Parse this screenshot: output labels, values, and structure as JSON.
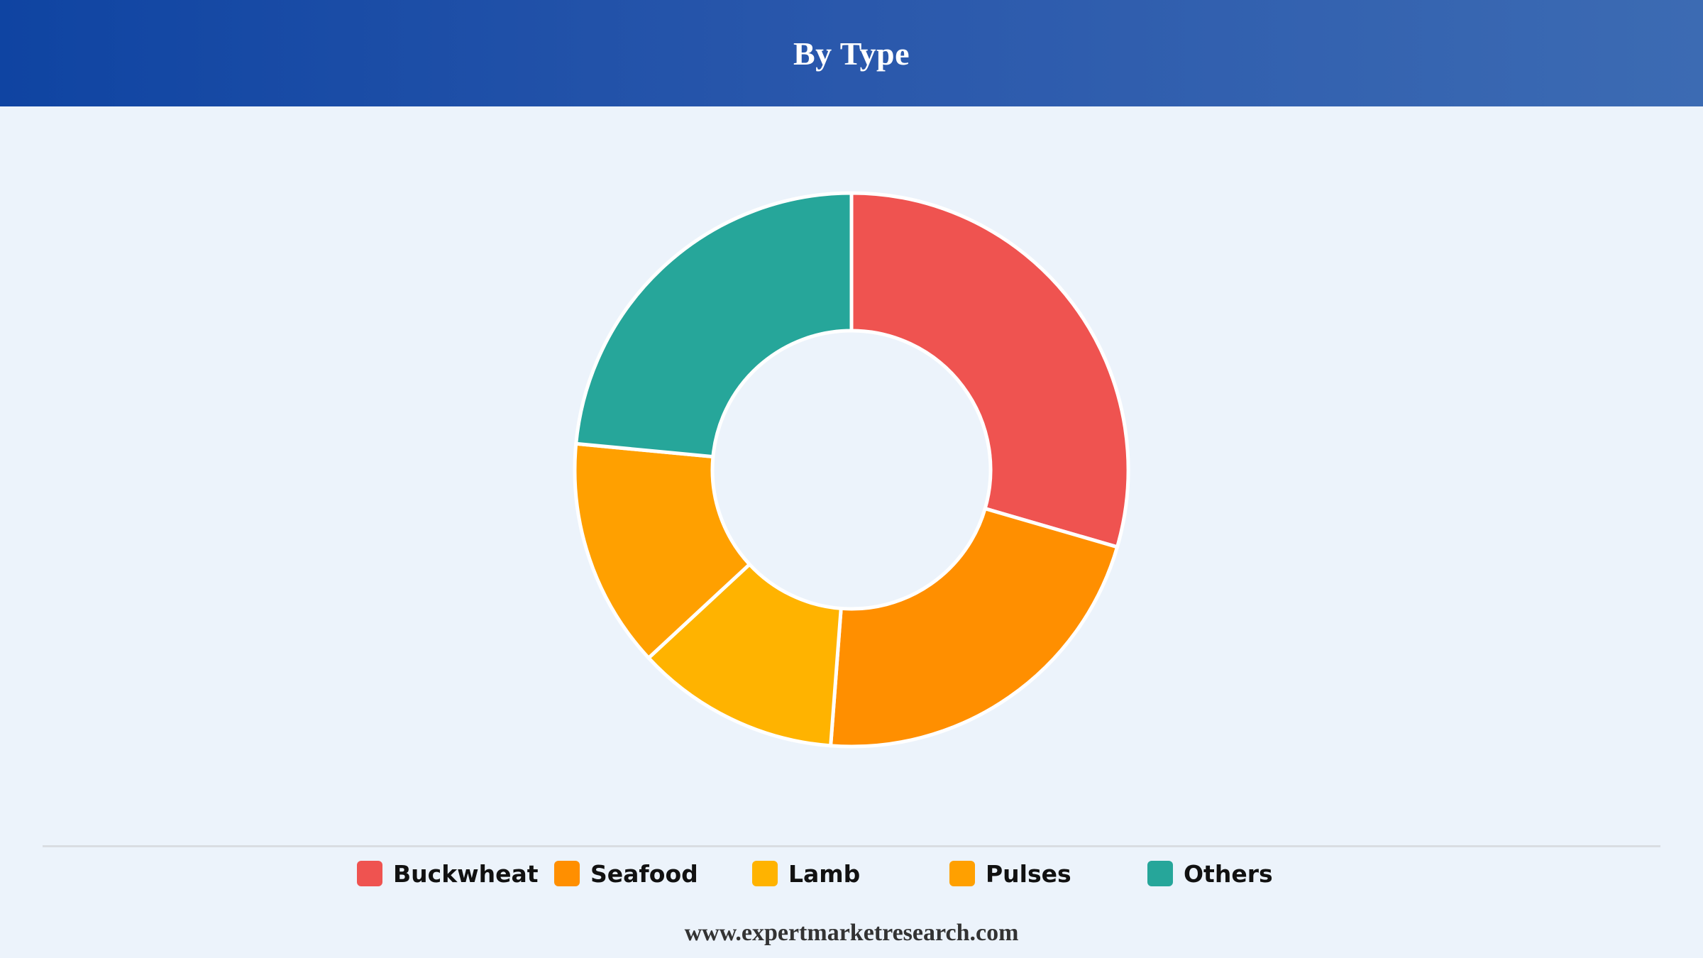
{
  "header": {
    "title": "By Type"
  },
  "footer": {
    "text": "www.expertmarketresearch.com"
  },
  "chart_data": {
    "type": "pie",
    "variant": "donut",
    "title": "By Type",
    "legend_position": "bottom",
    "categories": [
      "Buckwheat",
      "Seafood",
      "Lamb",
      "Pulses",
      "Others"
    ],
    "values": [
      29.5,
      21.7,
      11.9,
      13.4,
      23.5
    ],
    "unit": "%",
    "colors": [
      "#ef5350",
      "#ff8f00",
      "#ffb300",
      "#ffa000",
      "#26a69a"
    ],
    "start_angle_deg": 0,
    "direction": "clockwise"
  }
}
